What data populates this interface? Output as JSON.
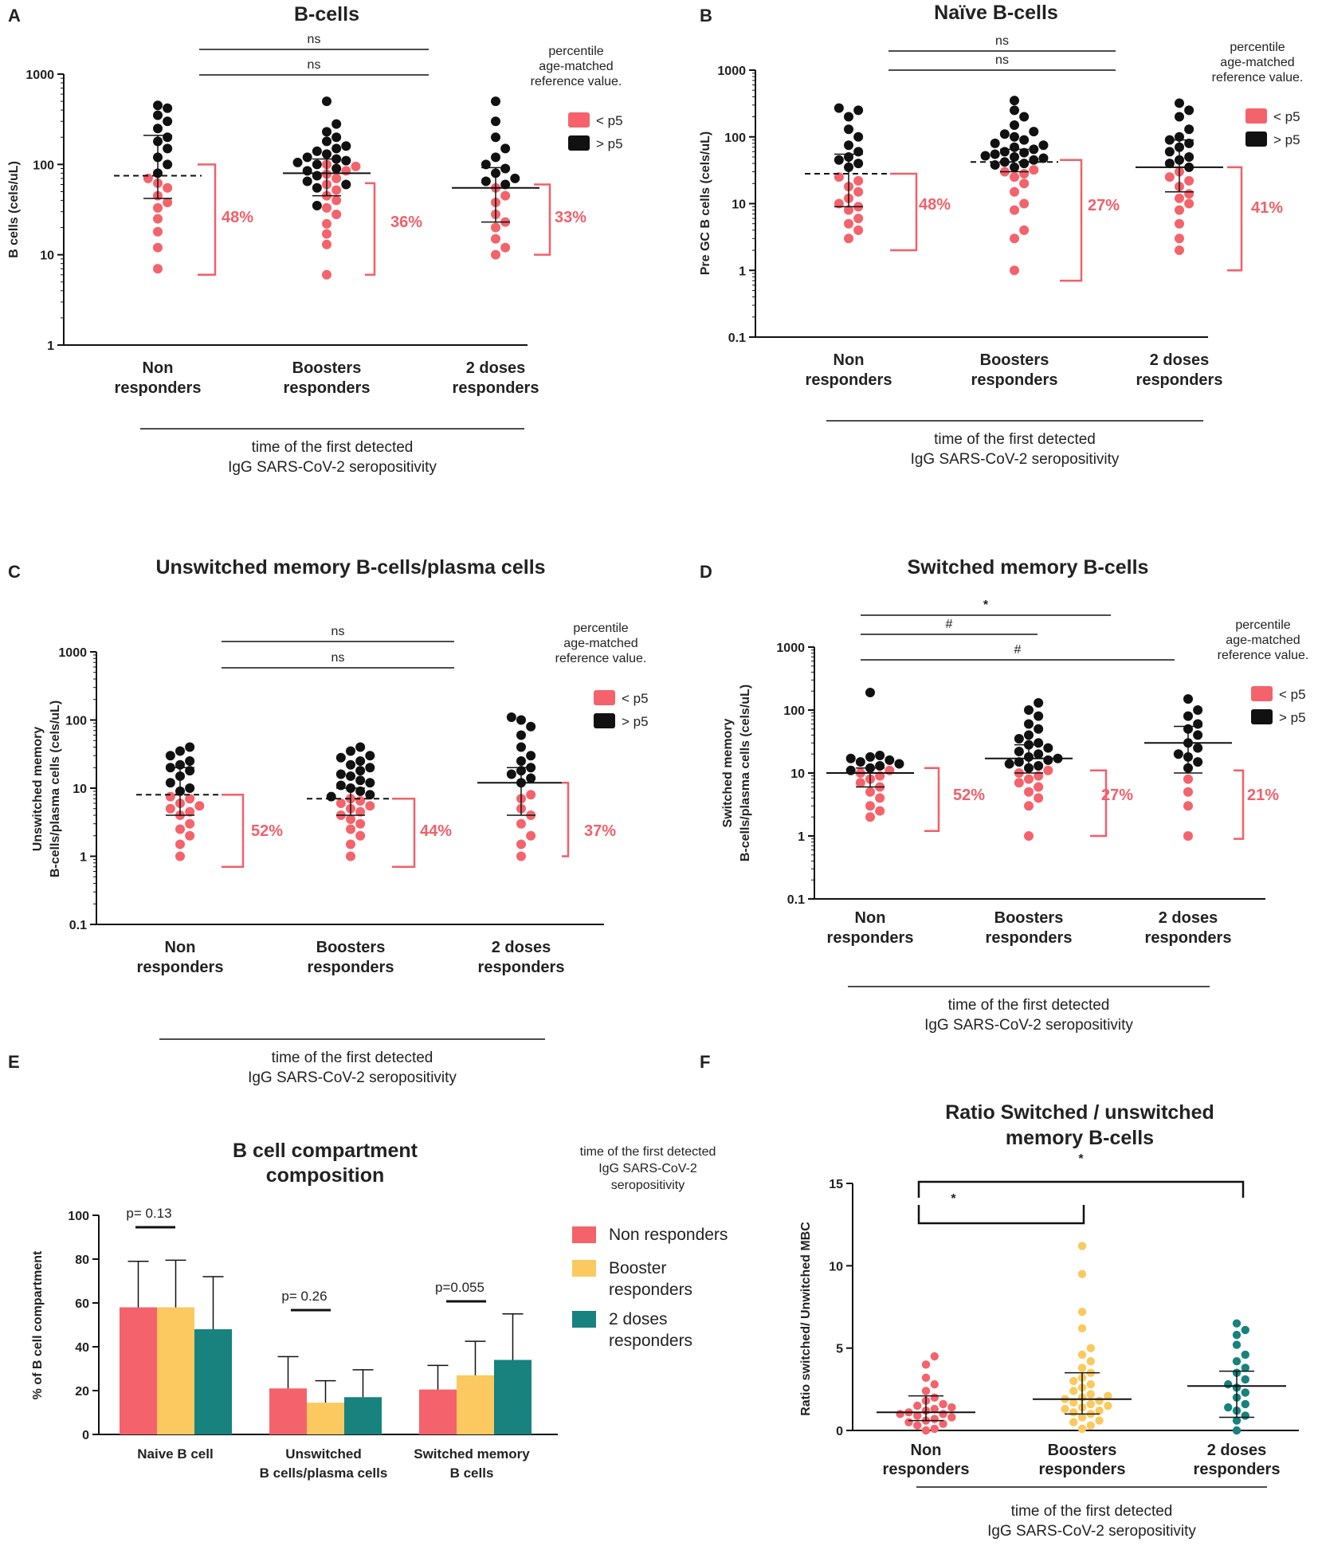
{
  "colors": {
    "red": "#f4636b",
    "black": "#111111",
    "yellow": "#fbc95f",
    "teal": "#17827e",
    "bracket": "#f0606a"
  },
  "chart_data": [
    {
      "panel": "A",
      "type": "scatter",
      "title": "B-cells",
      "ylabel": "B cells (cels/uL)",
      "yscale": "log",
      "ylim": [
        1,
        1000
      ],
      "yticks": [
        "1",
        "10",
        "100",
        "1000"
      ],
      "categories": [
        "Non responders",
        "Boosters responders",
        "2 doses responders"
      ],
      "xnote": [
        "time of the first detected",
        "IgG SARS-CoV-2 seropositivity"
      ],
      "legend": {
        "title": [
          "percentile",
          "age-matched",
          "reference value."
        ],
        "items": [
          "< p5",
          "> p5"
        ]
      },
      "comparisons": [
        {
          "label": "ns"
        },
        {
          "label": "ns"
        }
      ],
      "medians": [
        75,
        80,
        55
      ],
      "lines": [
        "dashed",
        "solid",
        "solid"
      ],
      "errors": [
        [
          42,
          210
        ],
        [
          45,
          115
        ],
        [
          23,
          92
        ]
      ],
      "percent_below_p5": [
        "48%",
        "36%",
        "33%"
      ],
      "brackets": [
        [
          6,
          100
        ],
        [
          6,
          62
        ],
        [
          10,
          60
        ]
      ],
      "series": [
        {
          "name": "< p5",
          "values": [
            [
              7,
              12,
              18,
              25,
              33,
              38,
              45,
              55,
              62,
              70
            ],
            [
              6,
              13,
              17,
              22,
              28,
              33,
              40,
              45,
              52,
              60,
              70,
              78,
              85,
              95,
              100
            ],
            [
              10,
              12,
              15,
              20,
              23,
              28,
              38,
              45,
              55
            ]
          ]
        },
        {
          "name": "> p5",
          "values": [
            [
              80,
              100,
              120,
              150,
              180,
              200,
              250,
              300,
              350,
              420,
              450
            ],
            [
              35,
              55,
              60,
              65,
              75,
              85,
              90,
              100,
              105,
              110,
              115,
              120,
              130,
              140,
              150,
              160,
              180,
              200,
              230,
              280,
              500
            ],
            [
              60,
              65,
              70,
              80,
              90,
              100,
              120,
              150,
              200,
              300,
              500
            ]
          ]
        }
      ]
    },
    {
      "panel": "B",
      "type": "scatter",
      "title": "Naïve  B-cells",
      "ylabel": "Pre GC B cells (cels/uL)",
      "yscale": "log",
      "ylim": [
        0.1,
        1000
      ],
      "yticks": [
        "0.1",
        "1",
        "10",
        "100",
        "1000"
      ],
      "categories": [
        "Non responders",
        "Boosters responders",
        "2 doses responders"
      ],
      "xnote": [
        "time of the first detected",
        "IgG SARS-CoV-2 seropositivity"
      ],
      "legend": {
        "title": [
          "percentile",
          "age-matched",
          "reference value."
        ],
        "items": [
          "< p5",
          "> p5"
        ]
      },
      "comparisons": [
        {
          "label": "ns"
        },
        {
          "label": "ns"
        }
      ],
      "medians": [
        28,
        42,
        35
      ],
      "lines": [
        "dashed",
        "dashed",
        "solid"
      ],
      "errors": [
        [
          9,
          55
        ],
        [
          30,
          65
        ],
        [
          15,
          90
        ]
      ],
      "percent_below_p5": [
        "48%",
        "27%",
        "41%"
      ],
      "brackets": [
        [
          2,
          28
        ],
        [
          0.7,
          45
        ],
        [
          1,
          35
        ]
      ],
      "series": [
        {
          "name": "< p5",
          "values": [
            [
              3,
              4,
              5,
              6,
              8,
              9,
              10,
              12,
              15,
              18,
              22,
              25
            ],
            [
              1,
              3,
              4,
              8,
              10,
              15,
              20,
              25,
              28,
              30,
              32
            ],
            [
              2,
              3,
              5,
              8,
              10,
              12,
              14,
              18,
              22,
              25,
              30
            ]
          ]
        },
        {
          "name": "> p5",
          "values": [
            [
              35,
              40,
              45,
              50,
              60,
              75,
              100,
              130,
              200,
              250,
              270
            ],
            [
              35,
              38,
              40,
              42,
              45,
              48,
              50,
              52,
              55,
              58,
              60,
              65,
              70,
              75,
              80,
              90,
              100,
              110,
              120,
              150,
              200,
              250,
              350
            ],
            [
              35,
              40,
              45,
              50,
              60,
              70,
              80,
              90,
              100,
              130,
              200,
              250,
              320
            ]
          ]
        }
      ]
    },
    {
      "panel": "C",
      "type": "scatter",
      "title": "Unswitched memory B-cells/plasma cells",
      "ylabel": [
        "Unswitched memory",
        "B-cells/plasma cells (cels/uL)"
      ],
      "yscale": "log",
      "ylim": [
        0.1,
        1000
      ],
      "yticks": [
        "0.1",
        "1",
        "10",
        "100",
        "1000"
      ],
      "categories": [
        "Non responders",
        "Boosters responders",
        "2 doses responders"
      ],
      "xnote": [
        "time of the first detected",
        "IgG SARS-CoV-2 seropositivity"
      ],
      "legend": {
        "title": [
          "percentile",
          "age-matched",
          "reference value."
        ],
        "items": [
          "< p5",
          "> p5"
        ]
      },
      "comparisons": [
        {
          "label": "ns"
        },
        {
          "label": "ns"
        }
      ],
      "medians": [
        8,
        7,
        12
      ],
      "lines": [
        "dashed",
        "dashed",
        "solid"
      ],
      "errors": [
        [
          4,
          20
        ],
        [
          4,
          10
        ],
        [
          4,
          20
        ]
      ],
      "percent_below_p5": [
        "52%",
        "44%",
        "37%"
      ],
      "brackets": [
        [
          0.7,
          8
        ],
        [
          0.7,
          7
        ],
        [
          1,
          12
        ]
      ],
      "series": [
        {
          "name": "< p5",
          "values": [
            [
              1,
              1.5,
              2,
              2.5,
              3,
              4,
              4.5,
              5,
              5.5,
              6,
              7,
              7.5
            ],
            [
              1,
              1.5,
              2,
              2.5,
              3,
              3.5,
              4,
              4.5,
              5,
              5.5,
              6,
              6.5,
              7
            ],
            [
              1,
              1.5,
              2,
              3,
              4,
              5,
              7,
              8
            ]
          ]
        },
        {
          "name": "> p5",
          "values": [
            [
              9,
              10,
              12,
              15,
              18,
              20,
              22,
              25,
              30,
              35,
              40
            ],
            [
              7.5,
              8,
              9,
              10,
              11,
              12,
              13,
              15,
              16,
              18,
              20,
              22,
              25,
              28,
              30,
              35,
              40
            ],
            [
              12,
              14,
              16,
              18,
              20,
              25,
              30,
              40,
              60,
              80,
              100,
              110
            ]
          ]
        }
      ]
    },
    {
      "panel": "D",
      "type": "scatter",
      "title": "Switched memory B-cells",
      "ylabel": [
        "Switched memory",
        "B-cells/plasma cells (cels/uL)"
      ],
      "yscale": "log",
      "ylim": [
        0.1,
        1000
      ],
      "yticks": [
        "0.1",
        "1",
        "10",
        "100",
        "1000"
      ],
      "categories": [
        "Non responders",
        "Boosters responders",
        "2 doses responders"
      ],
      "xnote": [
        "time of the first detected",
        "IgG SARS-CoV-2 seropositivity"
      ],
      "legend": {
        "title": [
          "percentile",
          "age-matched",
          "reference value."
        ],
        "items": [
          "< p5",
          "> p5"
        ]
      },
      "comparisons": [
        {
          "label": "*"
        },
        {
          "label": "#"
        },
        {
          "label": "#"
        }
      ],
      "medians": [
        10,
        17,
        30
      ],
      "lines": [
        "solid",
        "solid",
        "solid"
      ],
      "errors": [
        [
          6,
          12
        ],
        [
          10,
          28
        ],
        [
          10,
          55
        ]
      ],
      "percent_below_p5": [
        "52%",
        "27%",
        "21%"
      ],
      "brackets": [
        [
          1.2,
          12
        ],
        [
          1,
          11
        ],
        [
          0.9,
          11
        ]
      ],
      "series": [
        {
          "name": "< p5",
          "values": [
            [
              2,
              2.5,
              3,
              4,
              5,
              6,
              7,
              8,
              9,
              10,
              11
            ],
            [
              1,
              3,
              4,
              5,
              6,
              7,
              8,
              9,
              10,
              11
            ],
            [
              1,
              3,
              5,
              8
            ]
          ]
        },
        {
          "name": "> p5",
          "values": [
            [
              11,
              12,
              13,
              14,
              15,
              16,
              17,
              18,
              19,
              190
            ],
            [
              12,
              13,
              14,
              15,
              16,
              17,
              18,
              20,
              22,
              25,
              28,
              30,
              35,
              40,
              50,
              60,
              80,
              100,
              130
            ],
            [
              12,
              15,
              18,
              20,
              25,
              30,
              40,
              50,
              60,
              80,
              100,
              150
            ]
          ]
        }
      ]
    },
    {
      "panel": "E",
      "type": "bar",
      "title": [
        "B cell compartment",
        "composition"
      ],
      "ylabel": "% of B cell compartment",
      "ylim": [
        0,
        100
      ],
      "yticks": [
        "0",
        "20",
        "40",
        "60",
        "80",
        "100"
      ],
      "categories": [
        [
          "Naive B cell"
        ],
        [
          "Unswitched",
          "B cells/plasma cells"
        ],
        [
          "Switched memory",
          "B cells"
        ]
      ],
      "legend_title": [
        "time of the first detected",
        "IgG SARS-CoV-2",
        "seropositivity"
      ],
      "series": [
        {
          "name": [
            "Non responders"
          ],
          "values": [
            58,
            21,
            20.5
          ],
          "errors": [
            79,
            35.5,
            31.5
          ]
        },
        {
          "name": [
            "Booster",
            "responders"
          ],
          "values": [
            58,
            14.5,
            27
          ],
          "errors": [
            79.5,
            24.5,
            42.5
          ]
        },
        {
          "name": [
            "2 doses",
            "responders"
          ],
          "values": [
            48,
            17,
            34
          ],
          "errors": [
            72,
            29.5,
            55
          ]
        }
      ],
      "annotations": [
        "p= 0.13",
        "p= 0.26",
        "p=0.055"
      ]
    },
    {
      "panel": "F",
      "type": "scatter",
      "title": [
        "Ratio Switched / unswitched",
        "memory B-cells"
      ],
      "ylabel": "Ratio switched/ Unwitched MBC",
      "ylim": [
        0,
        15
      ],
      "yticks": [
        "0",
        "5",
        "10",
        "15"
      ],
      "categories": [
        "Non responders",
        "Boosters responders",
        "2 doses responders"
      ],
      "xnote": [
        "time of the first detected",
        "IgG SARS-CoV-2 seropositivity"
      ],
      "medians": [
        1.1,
        1.9,
        2.7
      ],
      "errors": [
        [
          0.6,
          2.1
        ],
        [
          1.0,
          3.5
        ],
        [
          0.8,
          3.6
        ]
      ],
      "comparisons": [
        {
          "label": "*"
        },
        {
          "label": "*"
        }
      ],
      "series": [
        {
          "name": "Non responders",
          "values": [
            0,
            0.1,
            0.3,
            0.4,
            0.5,
            0.6,
            0.7,
            0.8,
            0.9,
            1.0,
            1.0,
            1.1,
            1.2,
            1.3,
            1.4,
            1.5,
            1.6,
            1.8,
            2.0,
            2.4,
            2.8,
            3.2,
            4.0,
            4.5
          ]
        },
        {
          "name": "Boosters responders",
          "values": [
            0.1,
            0.3,
            0.5,
            0.6,
            0.8,
            1.0,
            1.1,
            1.2,
            1.3,
            1.4,
            1.5,
            1.6,
            1.7,
            1.8,
            1.9,
            2.0,
            2.1,
            2.2,
            2.4,
            2.6,
            2.8,
            3.0,
            3.2,
            3.5,
            3.8,
            4.2,
            4.6,
            5.0,
            6.2,
            7.2,
            9.5,
            11.2
          ]
        },
        {
          "name": "2 doses responders",
          "values": [
            0,
            0.6,
            0.9,
            1.2,
            1.4,
            1.6,
            2.0,
            2.3,
            2.6,
            2.8,
            3.1,
            3.5,
            3.8,
            4.2,
            4.6,
            5.2,
            5.8,
            6.1,
            6.5
          ]
        }
      ]
    }
  ]
}
